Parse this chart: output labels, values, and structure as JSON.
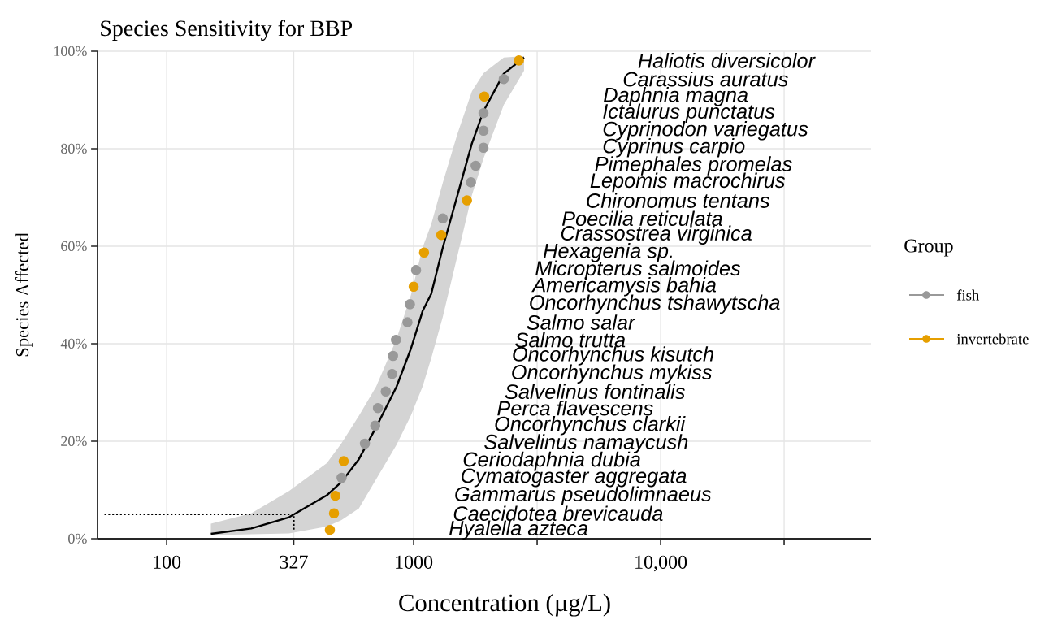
{
  "chart_data": {
    "type": "scatter",
    "title": "Species Sensitivity for BBP",
    "xlabel": "Concentration (µg/L)",
    "ylabel": "Species Affected",
    "legend_title": "Group",
    "log": "x",
    "grid": true,
    "legend": "right",
    "xlim": [
      52.5,
      71100
    ],
    "ylim": [
      0,
      100
    ],
    "xticks": [
      100,
      327,
      1000,
      {
        "value": 3162,
        "label": null
      },
      {
        "value": 10000,
        "label": "10,000"
      },
      {
        "value": 31623,
        "label": null
      }
    ],
    "yticks": [
      {
        "value": 0,
        "label": "0%"
      },
      {
        "value": 20,
        "label": "20%"
      },
      {
        "value": 40,
        "label": "40%"
      },
      {
        "value": 60,
        "label": "60%"
      },
      {
        "value": 80,
        "label": "80%"
      },
      {
        "value": 100,
        "label": "100%"
      }
    ],
    "series": [
      {
        "name": "fish",
        "color": "#999999",
        "marker": "circle",
        "x": [
          511,
          635,
          699,
          717,
          771,
          818,
          825,
          848,
          944,
          966,
          1023,
          1312,
          1706,
          1783,
          1918,
          1918,
          1918,
          2317
        ],
        "values": [
          12.5,
          19.5,
          23.2,
          26.8,
          30.2,
          33.8,
          37.5,
          40.8,
          44.4,
          48.1,
          55.1,
          65.7,
          73.1,
          76.5,
          80.2,
          83.7,
          87.3,
          94.3
        ]
      },
      {
        "name": "invertebrate",
        "color": "#e69f00",
        "marker": "circle",
        "x": [
          458,
          476,
          482,
          521,
          1000,
          1102,
          1294,
          1644,
          1932,
          2667
        ],
        "values": [
          1.8,
          5.2,
          8.8,
          15.9,
          51.7,
          58.7,
          62.3,
          69.4,
          90.7,
          98.1
        ]
      },
      {
        "type": "line",
        "color": "#000000",
        "x": [
          151,
          220,
          313,
          445,
          509,
          600,
          705,
          853,
          975,
          1087,
          1178,
          1312,
          1503,
          1722,
          1918,
          2317,
          2799
        ],
        "values": [
          1.0,
          2.1,
          4.4,
          8.9,
          11.6,
          16.3,
          22.9,
          31.2,
          39.0,
          46.7,
          50.2,
          59.7,
          70.4,
          81.1,
          87.7,
          95.4,
          98.7
        ],
        "lower": [
          0.7,
          0.9,
          1.1,
          2.5,
          3.8,
          6.2,
          12.2,
          19.3,
          25.3,
          31.2,
          37.0,
          45.5,
          58.0,
          70.5,
          78.0,
          89.0,
          96.0
        ],
        "upper": [
          3.1,
          5.2,
          9.8,
          15.5,
          19.5,
          25.2,
          31.2,
          41.0,
          50.0,
          59.7,
          64.5,
          73.0,
          83.0,
          91.8,
          95.5,
          98.7,
          99.0
        ],
        "marker": "none"
      },
      {
        "type": "line",
        "color": "#000000",
        "line_style": "dotted",
        "marker": "none",
        "x": [
          56,
          327,
          327
        ],
        "values": [
          5,
          5,
          1.5
        ]
      }
    ],
    "annotations": [
      "Hyalella azteca",
      "Caecidotea brevicauda",
      "Gammarus pseudolimnaeus",
      "Cymatogaster aggregata",
      "Ceriodaphnia dubia",
      "Salvelinus namaycush",
      "Oncorhynchus clarkii",
      "Perca flavescens",
      "Salvelinus fontinalis",
      "Oncorhynchus mykiss",
      "Oncorhynchus kisutch",
      "Salmo trutta",
      "Salmo salar",
      "Oncorhynchus tshawytscha",
      "Americamysis bahia",
      "Micropterus salmoides",
      "Hexagenia sp.",
      "Crassostrea virginica",
      "Poecilia reticulata",
      "Chironomus tentans",
      "Lepomis macrochirus",
      "Pimephales promelas",
      "Cyprinus carpio",
      "Cyprinodon variegatus",
      "Ictalurus punctatus",
      "Daphnia magna",
      "Carassius auratus",
      "Haliotis diversicolor"
    ]
  }
}
